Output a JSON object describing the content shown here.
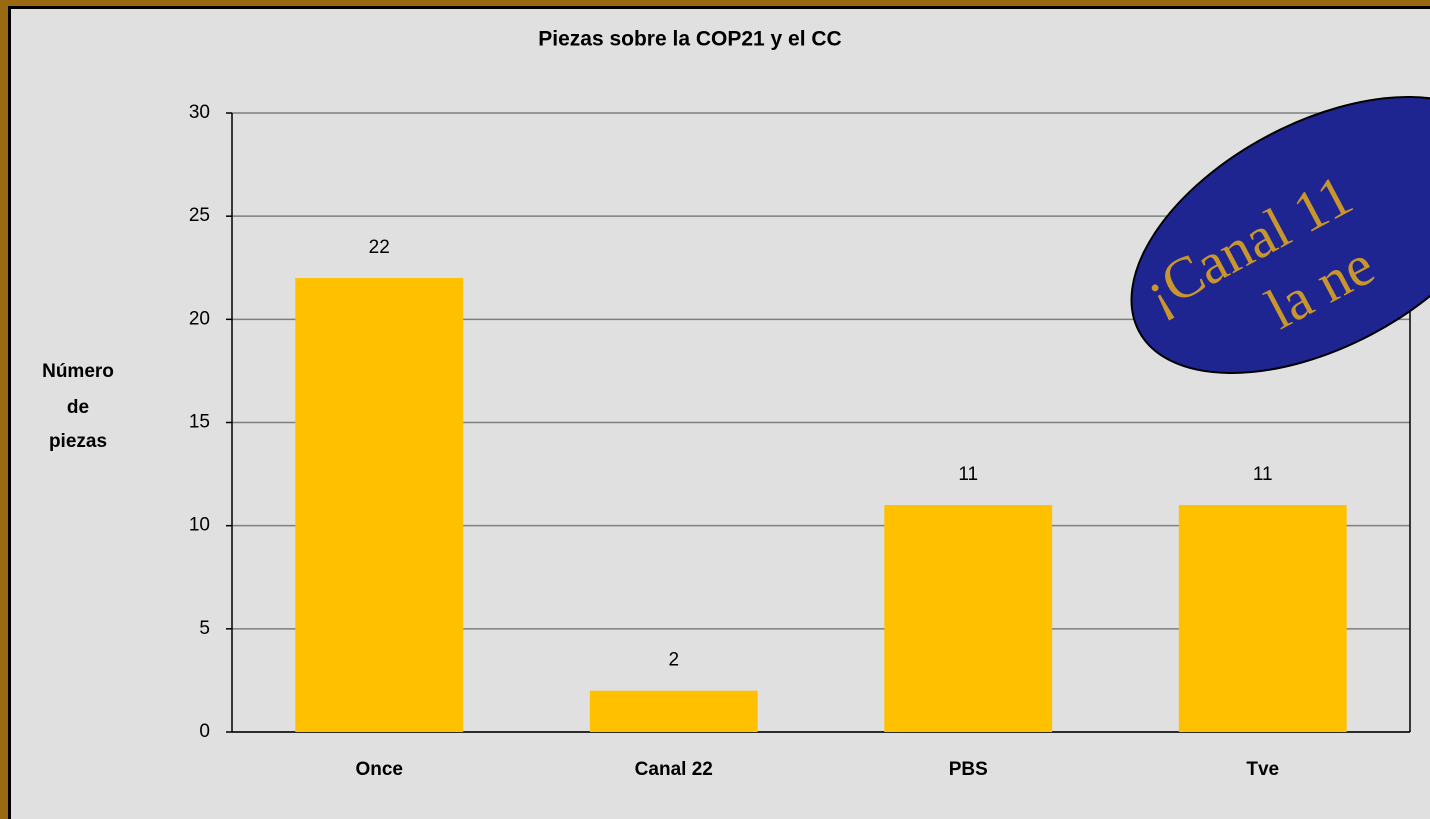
{
  "chart_data": {
    "type": "bar",
    "title": "Piezas sobre la COP21 y el CC",
    "ylabel": [
      "Número",
      "de",
      "piezas"
    ],
    "categories": [
      "Once",
      "Canal 22",
      "PBS",
      "Tve"
    ],
    "values": [
      22,
      2,
      11,
      11
    ],
    "color": "#ffc000",
    "ylim": [
      0,
      30
    ],
    "yticks": [
      0,
      5,
      10,
      15,
      20,
      25,
      30
    ],
    "grid": true,
    "annotation": [
      "¡Canal 11",
      "la ne"
    ]
  }
}
